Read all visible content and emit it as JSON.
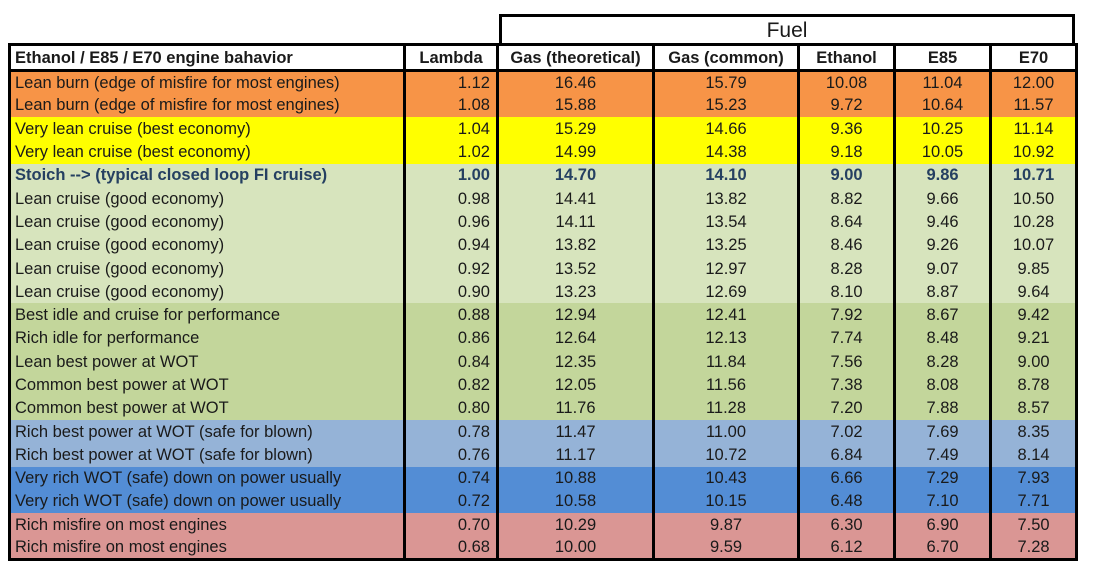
{
  "fuel_header": "Fuel",
  "headers": [
    "Ethanol / E85 / E70 engine bahavior",
    "Lambda",
    "Gas (theoretical)",
    "Gas (common)",
    "Ethanol",
    "E85",
    "E70"
  ],
  "colors": {
    "orange": "#f79447",
    "yellow": "#ffff00",
    "light_green": "#d7e4bd",
    "green": "#c3d69b",
    "light_blue": "#95b3d7",
    "blue": "#538dd5",
    "pink": "#da9694",
    "stoich_text": "#254061"
  },
  "rows": [
    {
      "color": "orange",
      "bold": false,
      "cells": [
        "Lean burn (edge of misfire for most engines)",
        "1.12",
        "16.46",
        "15.79",
        "10.08",
        "11.04",
        "12.00"
      ]
    },
    {
      "color": "orange",
      "bold": false,
      "cells": [
        "Lean burn (edge of misfire for most engines)",
        "1.08",
        "15.88",
        "15.23",
        "9.72",
        "10.64",
        "11.57"
      ]
    },
    {
      "color": "yellow",
      "bold": false,
      "cells": [
        "Very lean cruise (best economy)",
        "1.04",
        "15.29",
        "14.66",
        "9.36",
        "10.25",
        "11.14"
      ]
    },
    {
      "color": "yellow",
      "bold": false,
      "cells": [
        "Very lean cruise (best economy)",
        "1.02",
        "14.99",
        "14.38",
        "9.18",
        "10.05",
        "10.92"
      ]
    },
    {
      "color": "light_green",
      "bold": true,
      "cells": [
        "Stoich --> (typical closed loop FI cruise)",
        "1.00",
        "14.70",
        "14.10",
        "9.00",
        "9.86",
        "10.71"
      ]
    },
    {
      "color": "light_green",
      "bold": false,
      "cells": [
        "Lean cruise (good economy)",
        "0.98",
        "14.41",
        "13.82",
        "8.82",
        "9.66",
        "10.50"
      ]
    },
    {
      "color": "light_green",
      "bold": false,
      "cells": [
        "Lean cruise (good economy)",
        "0.96",
        "14.11",
        "13.54",
        "8.64",
        "9.46",
        "10.28"
      ]
    },
    {
      "color": "light_green",
      "bold": false,
      "cells": [
        "Lean cruise (good economy)",
        "0.94",
        "13.82",
        "13.25",
        "8.46",
        "9.26",
        "10.07"
      ]
    },
    {
      "color": "light_green",
      "bold": false,
      "cells": [
        "Lean cruise (good economy)",
        "0.92",
        "13.52",
        "12.97",
        "8.28",
        "9.07",
        "9.85"
      ]
    },
    {
      "color": "light_green",
      "bold": false,
      "cells": [
        "Lean cruise (good economy)",
        "0.90",
        "13.23",
        "12.69",
        "8.10",
        "8.87",
        "9.64"
      ]
    },
    {
      "color": "green",
      "bold": false,
      "cells": [
        "Best idle and cruise for performance",
        "0.88",
        "12.94",
        "12.41",
        "7.92",
        "8.67",
        "9.42"
      ]
    },
    {
      "color": "green",
      "bold": false,
      "cells": [
        "Rich idle for performance",
        "0.86",
        "12.64",
        "12.13",
        "7.74",
        "8.48",
        "9.21"
      ]
    },
    {
      "color": "green",
      "bold": false,
      "cells": [
        "Lean best power at WOT",
        "0.84",
        "12.35",
        "11.84",
        "7.56",
        "8.28",
        "9.00"
      ]
    },
    {
      "color": "green",
      "bold": false,
      "cells": [
        "Common best power at WOT",
        "0.82",
        "12.05",
        "11.56",
        "7.38",
        "8.08",
        "8.78"
      ]
    },
    {
      "color": "green",
      "bold": false,
      "cells": [
        "Common best power at WOT",
        "0.80",
        "11.76",
        "11.28",
        "7.20",
        "7.88",
        "8.57"
      ]
    },
    {
      "color": "light_blue",
      "bold": false,
      "cells": [
        "Rich best power at WOT (safe for blown)",
        "0.78",
        "11.47",
        "11.00",
        "7.02",
        "7.69",
        "8.35"
      ]
    },
    {
      "color": "light_blue",
      "bold": false,
      "cells": [
        "Rich best power at WOT (safe for blown)",
        "0.76",
        "11.17",
        "10.72",
        "6.84",
        "7.49",
        "8.14"
      ]
    },
    {
      "color": "blue",
      "bold": false,
      "cells": [
        "Very rich WOT (safe) down on power usually",
        "0.74",
        "10.88",
        "10.43",
        "6.66",
        "7.29",
        "7.93"
      ]
    },
    {
      "color": "blue",
      "bold": false,
      "cells": [
        "Very rich WOT (safe) down on power usually",
        "0.72",
        "10.58",
        "10.15",
        "6.48",
        "7.10",
        "7.71"
      ]
    },
    {
      "color": "pink",
      "bold": false,
      "cells": [
        "Rich misfire on most engines",
        "0.70",
        "10.29",
        "9.87",
        "6.30",
        "6.90",
        "7.50"
      ]
    },
    {
      "color": "pink",
      "bold": false,
      "cells": [
        "Rich misfire on most engines",
        "0.68",
        "10.00",
        "9.59",
        "6.12",
        "6.70",
        "7.28"
      ]
    }
  ]
}
